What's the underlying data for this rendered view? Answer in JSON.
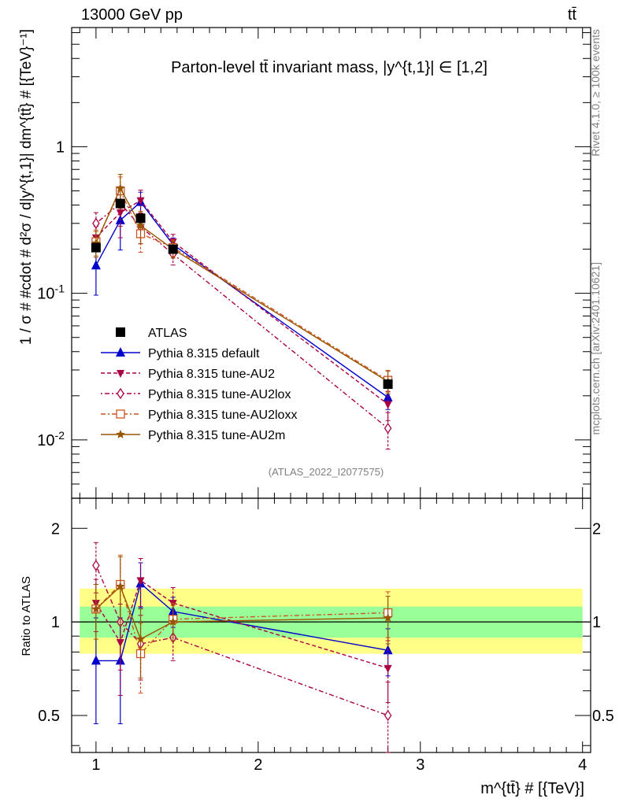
{
  "header": {
    "left": "13000 GeV pp",
    "right": "tt̄"
  },
  "side_labels": {
    "rivet": "Rivet 4.1.0, ≥ 100k events",
    "mcplots": "mcplots.cern.ch [arXiv:2401.10621]"
  },
  "chart_data": {
    "type": "line",
    "title": "Parton-level tt̄ invariant mass, |y^{t,1}| ∈ [1,2]",
    "analysis_id": "(ATLAS_2022_I2077575)",
    "xlabel": "m^{tt̄} # [{TeV}]",
    "ylabel": "1 / σ # #cdot # d²σ / d|y^{t,1}| dm^{tt̄} # [{TeV}⁻¹]",
    "ratio_ylabel": "Ratio to ATLAS",
    "xlim": [
      0.85,
      4.05
    ],
    "ylim": [
      0.004,
      6.5
    ],
    "ratio_ylim": [
      0.38,
      2.5
    ],
    "yscale": "log",
    "x_ticks": [
      1,
      2,
      3,
      4
    ],
    "x_tick_labels": [
      "1",
      "2",
      "3",
      "4"
    ],
    "y_tick_labels": [
      "10^{-2}",
      "10^{-1}",
      "1"
    ],
    "ratio_tick_labels": [
      "0.5",
      "1",
      "2"
    ],
    "x": [
      1.0,
      1.15,
      1.275,
      1.475,
      2.8
    ],
    "data": {
      "name": "ATLAS",
      "values": [
        0.205,
        0.41,
        0.325,
        0.2,
        0.024
      ],
      "band_inner": [
        0.89,
        1.12
      ],
      "band_outer": [
        0.79,
        1.28
      ],
      "band_x": [
        0.9,
        4.0
      ]
    },
    "series": [
      {
        "name": "Pythia 8.315 default",
        "color": "#0000cc",
        "dash": "solid",
        "marker": "triangle-up",
        "values": [
          0.155,
          0.315,
          0.42,
          0.215,
          0.0195
        ],
        "ratio": [
          0.75,
          0.75,
          1.33,
          1.08,
          0.81
        ],
        "ratio_err": [
          0.28,
          0.28,
          0.22,
          0.12,
          0.14
        ]
      },
      {
        "name": "Pythia 8.315 tune-AU2",
        "color": "#aa0044",
        "dash": "5,3",
        "marker": "triangle-down",
        "values": [
          0.24,
          0.355,
          0.43,
          0.225,
          0.0175
        ],
        "ratio": [
          1.15,
          0.86,
          1.36,
          1.15,
          0.71
        ],
        "ratio_err": [
          0.22,
          0.28,
          0.24,
          0.14,
          0.16
        ]
      },
      {
        "name": "Pythia 8.315 tune-AU2lox",
        "color": "#aa0044",
        "dash": "2,3,6,3",
        "marker": "diamond-open",
        "values": [
          0.3,
          0.41,
          0.285,
          0.185,
          0.012
        ],
        "ratio": [
          1.52,
          1.0,
          0.85,
          0.89,
          0.5
        ],
        "ratio_err": [
          0.28,
          0.3,
          0.2,
          0.14,
          0.14
        ]
      },
      {
        "name": "Pythia 8.315 tune-AU2loxx",
        "color": "#cc5522",
        "dash": "6,3,2,3",
        "marker": "square-open",
        "values": [
          0.225,
          0.5,
          0.255,
          0.205,
          0.0255
        ],
        "ratio": [
          1.1,
          1.32,
          0.79,
          1.02,
          1.07
        ],
        "ratio_err": [
          0.22,
          0.32,
          0.2,
          0.13,
          0.18
        ]
      },
      {
        "name": "Pythia 8.315 tune-AU2m",
        "color": "#995500",
        "dash": "solid",
        "marker": "star",
        "values": [
          0.22,
          0.52,
          0.29,
          0.2,
          0.025
        ],
        "ratio": [
          1.1,
          1.3,
          0.88,
          1.0,
          1.03
        ],
        "ratio_err": [
          0.22,
          0.32,
          0.22,
          0.13,
          0.18
        ]
      }
    ]
  }
}
